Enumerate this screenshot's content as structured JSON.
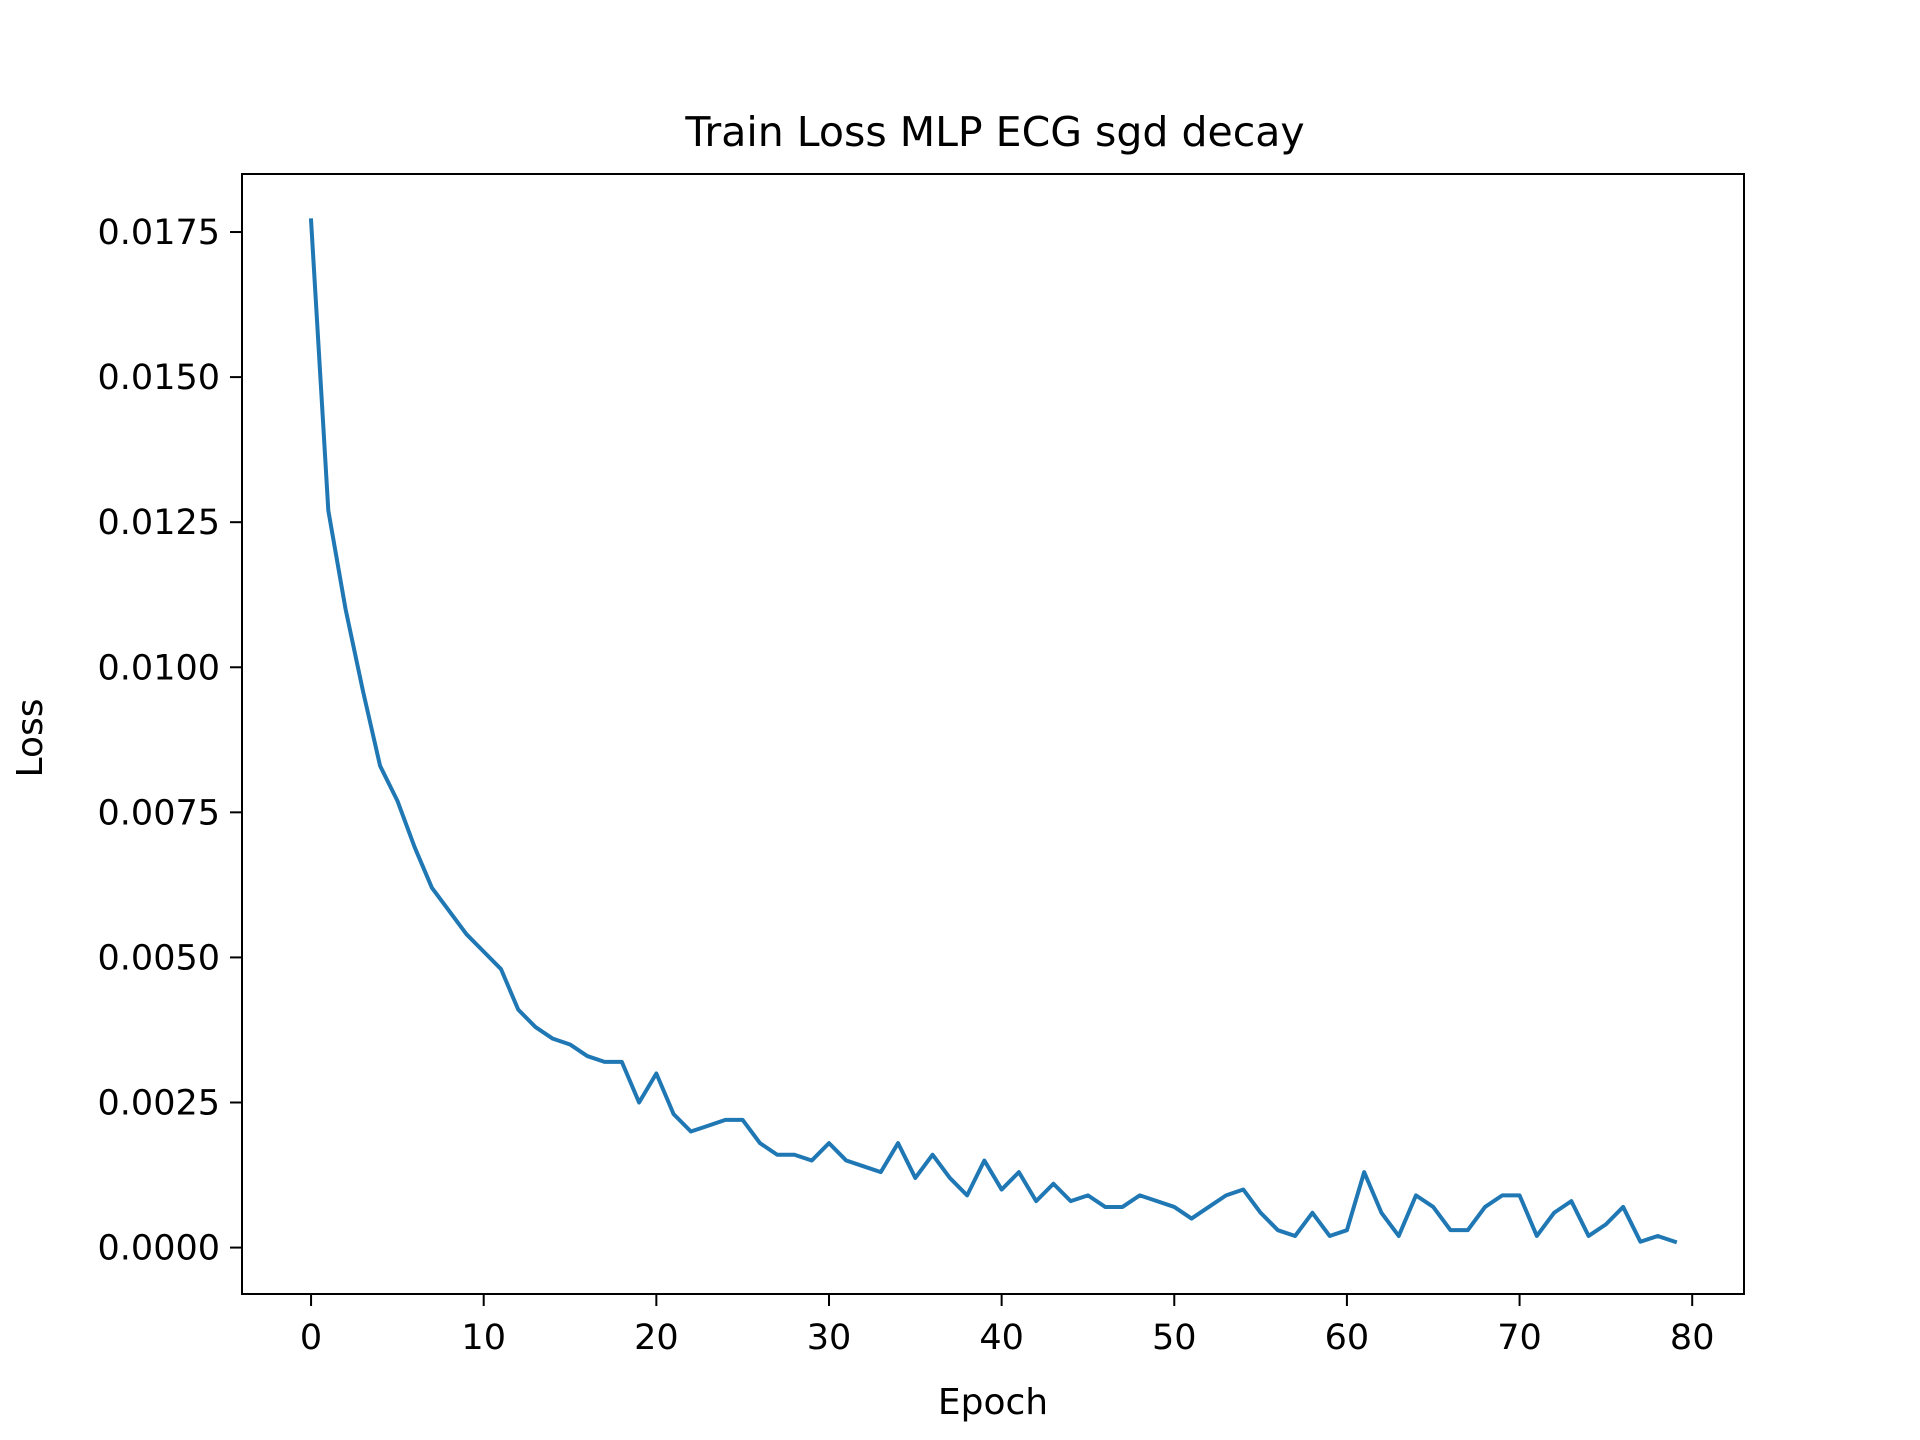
{
  "chart_data": {
    "type": "line",
    "title": "Train Loss MLP ECG sgd decay",
    "xlabel": "Epoch",
    "ylabel": "Loss",
    "xlim": [
      -4,
      83
    ],
    "ylim": [
      -0.0008,
      0.0185
    ],
    "x_ticks": [
      0,
      10,
      20,
      30,
      40,
      50,
      60,
      70,
      80
    ],
    "x_tick_labels": [
      "0",
      "10",
      "20",
      "30",
      "40",
      "50",
      "60",
      "70",
      "80"
    ],
    "y_ticks": [
      0.0,
      0.0025,
      0.005,
      0.0075,
      0.01,
      0.0125,
      0.015,
      0.0175
    ],
    "y_tick_labels": [
      "0.0000",
      "0.0025",
      "0.0050",
      "0.0075",
      "0.0100",
      "0.0125",
      "0.0150",
      "0.0175"
    ],
    "grid": false,
    "line_color": "#1f77b4",
    "series": [
      {
        "x": [
          0,
          1,
          2,
          3,
          4,
          5,
          6,
          7,
          8,
          9,
          10,
          11,
          12,
          13,
          14,
          15,
          16,
          17,
          18,
          19,
          20,
          21,
          22,
          23,
          24,
          25,
          26,
          27,
          28,
          29,
          30,
          31,
          32,
          33,
          34,
          35,
          36,
          37,
          38,
          39,
          40,
          41,
          42,
          43,
          44,
          45,
          46,
          47,
          48,
          49,
          50,
          51,
          52,
          53,
          54,
          55,
          56,
          57,
          58,
          59,
          60,
          61,
          62,
          63,
          64,
          65,
          66,
          67,
          68,
          69,
          70,
          71,
          72,
          73,
          74,
          75,
          76,
          77,
          78,
          79
        ],
        "values": [
          0.0177,
          0.0127,
          0.011,
          0.0096,
          0.0083,
          0.0077,
          0.0069,
          0.0062,
          0.0058,
          0.0054,
          0.0051,
          0.0048,
          0.0041,
          0.0038,
          0.0036,
          0.0035,
          0.0033,
          0.0032,
          0.0032,
          0.0025,
          0.003,
          0.0023,
          0.002,
          0.0021,
          0.0022,
          0.0022,
          0.0018,
          0.0016,
          0.0016,
          0.0015,
          0.0018,
          0.0015,
          0.0014,
          0.0013,
          0.0018,
          0.0012,
          0.0016,
          0.0012,
          0.0009,
          0.0015,
          0.001,
          0.0013,
          0.0008,
          0.0011,
          0.0008,
          0.0009,
          0.0007,
          0.0007,
          0.0009,
          0.0008,
          0.0007,
          0.0005,
          0.0007,
          0.0009,
          0.001,
          0.0006,
          0.0003,
          0.0002,
          0.0006,
          0.0002,
          0.0003,
          0.0013,
          0.0006,
          0.0002,
          0.0009,
          0.0007,
          0.0003,
          0.0003,
          0.0007,
          0.0009,
          0.0009,
          0.0002,
          0.0006,
          0.0008,
          0.0002,
          0.0004,
          0.0007,
          0.0001,
          0.0002,
          0.0001
        ]
      }
    ]
  }
}
